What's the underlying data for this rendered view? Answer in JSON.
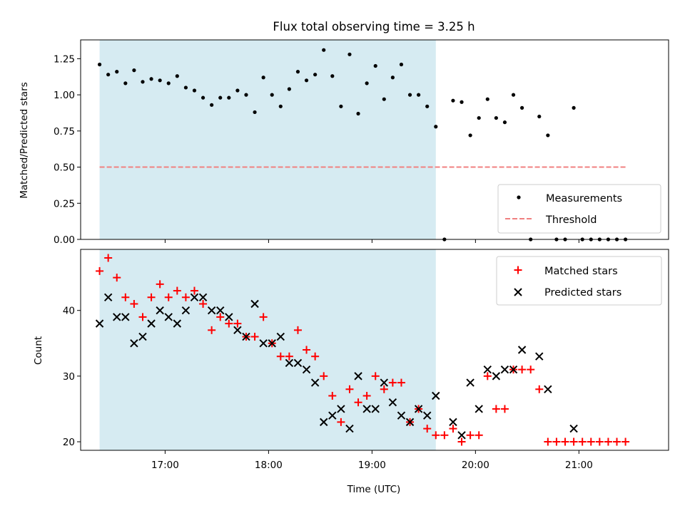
{
  "chart_data": [
    {
      "type": "scatter",
      "title": "Flux total observing time = 3.25 h",
      "xlabel": "",
      "ylabel": "Matched/Predicted stars",
      "x_unit": "time (UTC)",
      "xlim": [
        "16:11",
        "21:52"
      ],
      "xticks": [
        "17:00",
        "18:00",
        "19:00",
        "20:00",
        "21:00"
      ],
      "ylim": [
        0,
        1.38
      ],
      "yticks": [
        "0.00",
        "0.25",
        "0.50",
        "0.75",
        "1.00",
        "1.25"
      ],
      "shaded_span": {
        "start": "16:22",
        "end": "19:37",
        "color": "#add8e6"
      },
      "legend": {
        "location": "lower-right",
        "entries": [
          "Measurements",
          "Threshold"
        ]
      },
      "threshold": {
        "name": "Threshold",
        "value": 0.5,
        "x_start": "16:22",
        "x_end": "21:27",
        "color": "#f08080"
      },
      "series": [
        {
          "name": "Measurements",
          "color": "#000000",
          "x": [
            "16:22",
            "16:27",
            "16:32",
            "16:37",
            "16:42",
            "16:47",
            "16:52",
            "16:57",
            "17:02",
            "17:07",
            "17:12",
            "17:17",
            "17:22",
            "17:27",
            "17:32",
            "17:37",
            "17:42",
            "17:47",
            "17:52",
            "17:57",
            "18:02",
            "18:07",
            "18:12",
            "18:17",
            "18:22",
            "18:27",
            "18:32",
            "18:37",
            "18:42",
            "18:47",
            "18:52",
            "18:57",
            "19:02",
            "19:07",
            "19:12",
            "19:17",
            "19:22",
            "19:27",
            "19:32",
            "19:37",
            "19:42",
            "19:47",
            "19:52",
            "19:57",
            "20:02",
            "20:07",
            "20:12",
            "20:17",
            "20:22",
            "20:27",
            "20:32",
            "20:37",
            "20:42",
            "20:47",
            "20:52",
            "20:57",
            "21:02",
            "21:07",
            "21:12",
            "21:17",
            "21:22",
            "21:27"
          ],
          "values": [
            1.21,
            1.14,
            1.16,
            1.08,
            1.17,
            1.09,
            1.11,
            1.1,
            1.08,
            1.13,
            1.05,
            1.03,
            0.98,
            0.93,
            0.98,
            0.98,
            1.03,
            1.0,
            0.88,
            1.12,
            1.0,
            0.92,
            1.04,
            1.16,
            1.1,
            1.14,
            1.31,
            1.13,
            0.92,
            1.28,
            0.87,
            1.08,
            1.2,
            0.97,
            1.12,
            1.21,
            1.0,
            1.0,
            0.92,
            0.78,
            0.0,
            0.96,
            0.95,
            0.72,
            0.84,
            0.97,
            0.84,
            0.81,
            1.0,
            0.91,
            0.0,
            0.85,
            0.72,
            0.0,
            0.0,
            0.91,
            0.0,
            0.0,
            0.0,
            0.0,
            0.0,
            0.0
          ]
        }
      ]
    },
    {
      "type": "scatter",
      "title": "",
      "xlabel": "Time (UTC)",
      "ylabel": "Count",
      "x_unit": "time (UTC)",
      "xlim": [
        "16:11",
        "21:52"
      ],
      "xticks": [
        "17:00",
        "18:00",
        "19:00",
        "20:00",
        "21:00"
      ],
      "ylim": [
        18.7,
        49.3
      ],
      "yticks": [
        "20",
        "30",
        "40"
      ],
      "shaded_span": {
        "start": "16:22",
        "end": "19:37",
        "color": "#add8e6"
      },
      "legend": {
        "location": "top-right",
        "entries": [
          "Matched stars",
          "Predicted stars"
        ]
      },
      "series": [
        {
          "name": "Matched stars",
          "marker": "plus",
          "color": "#ff0000",
          "x": [
            "16:22",
            "16:27",
            "16:32",
            "16:37",
            "16:42",
            "16:47",
            "16:52",
            "16:57",
            "17:02",
            "17:07",
            "17:12",
            "17:17",
            "17:22",
            "17:27",
            "17:32",
            "17:37",
            "17:42",
            "17:47",
            "17:52",
            "17:57",
            "18:02",
            "18:07",
            "18:12",
            "18:17",
            "18:22",
            "18:27",
            "18:32",
            "18:37",
            "18:42",
            "18:47",
            "18:52",
            "18:57",
            "19:02",
            "19:07",
            "19:12",
            "19:17",
            "19:22",
            "19:27",
            "19:32",
            "19:37",
            "19:42",
            "19:47",
            "19:52",
            "19:57",
            "20:02",
            "20:07",
            "20:12",
            "20:17",
            "20:22",
            "20:27",
            "20:32",
            "20:37",
            "20:42",
            "20:47",
            "20:52",
            "20:57",
            "21:02",
            "21:07",
            "21:12",
            "21:17",
            "21:22",
            "21:27"
          ],
          "values": [
            46,
            48,
            45,
            42,
            41,
            39,
            42,
            44,
            42,
            43,
            42,
            43,
            41,
            37,
            39,
            38,
            38,
            36,
            36,
            39,
            35,
            33,
            33,
            37,
            34,
            33,
            30,
            27,
            23,
            28,
            26,
            27,
            30,
            28,
            29,
            29,
            23,
            25,
            22,
            21,
            21,
            22,
            20,
            21,
            21,
            30,
            25,
            25,
            31,
            31,
            31,
            28,
            20,
            20,
            20,
            20,
            20,
            20,
            20,
            20,
            20,
            20
          ]
        },
        {
          "name": "Predicted stars",
          "marker": "x",
          "color": "#000000",
          "x": [
            "16:22",
            "16:27",
            "16:32",
            "16:37",
            "16:42",
            "16:47",
            "16:52",
            "16:57",
            "17:02",
            "17:07",
            "17:12",
            "17:17",
            "17:22",
            "17:27",
            "17:32",
            "17:37",
            "17:42",
            "17:47",
            "17:52",
            "17:57",
            "18:02",
            "18:07",
            "18:12",
            "18:17",
            "18:22",
            "18:27",
            "18:32",
            "18:37",
            "18:42",
            "18:47",
            "18:52",
            "18:57",
            "19:02",
            "19:07",
            "19:12",
            "19:17",
            "19:22",
            "19:27",
            "19:32",
            "19:37",
            "19:47",
            "19:52",
            "19:57",
            "20:02",
            "20:07",
            "20:12",
            "20:17",
            "20:22",
            "20:27",
            "20:37",
            "20:42",
            "20:57"
          ],
          "values": [
            38,
            42,
            39,
            39,
            35,
            36,
            38,
            40,
            39,
            38,
            40,
            42,
            42,
            40,
            40,
            39,
            37,
            36,
            41,
            35,
            35,
            36,
            32,
            32,
            31,
            29,
            23,
            24,
            25,
            22,
            30,
            25,
            25,
            29,
            26,
            24,
            23,
            25,
            24,
            27,
            23,
            21,
            29,
            25,
            31,
            30,
            31,
            31,
            34,
            33,
            28,
            22
          ]
        }
      ]
    }
  ]
}
